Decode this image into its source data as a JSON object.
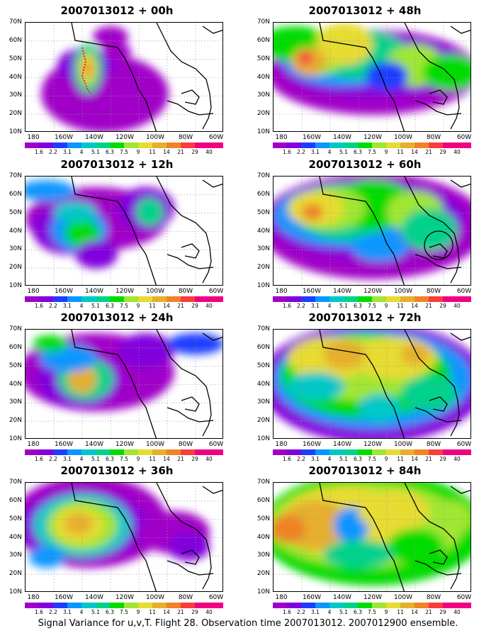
{
  "caption": "Signal Variance for u,v,T. Flight 28. Observation time 2007013012. 2007012900 ensemble.",
  "y_labels": [
    "70N",
    "60N",
    "50N",
    "40N",
    "30N",
    "20N",
    "10N"
  ],
  "x_labels": [
    "180",
    "160W",
    "140W",
    "120W",
    "100W",
    "80W",
    "60W"
  ],
  "colorbar_levels": [
    "1.6",
    "2.2",
    "3.1",
    "4",
    "5.1",
    "6.3",
    "7.5",
    "9",
    "11",
    "14",
    "21",
    "29",
    "40"
  ],
  "colorbar_colors": [
    "#a000c8",
    "#8200dc",
    "#1e3cff",
    "#0a96ff",
    "#00c8c8",
    "#00d28c",
    "#00dc00",
    "#a0e632",
    "#e6dc32",
    "#e6af2d",
    "#f08228",
    "#fa3c3c",
    "#f00082"
  ],
  "map_style": {
    "land_outline": "#000000",
    "gridlines": "dotted gray",
    "low_values": "white"
  },
  "panels": [
    {
      "title": "2007013012 + 00h",
      "annotation": "red dotted flight track"
    },
    {
      "title": "2007013012 + 48h"
    },
    {
      "title": "2007013012 + 12h"
    },
    {
      "title": "2007013012 + 60h",
      "annotation": "black circle over eastern US"
    },
    {
      "title": "2007013012 + 24h"
    },
    {
      "title": "2007013012 + 72h"
    },
    {
      "title": "2007013012 + 36h"
    },
    {
      "title": "2007013012 + 84h"
    }
  ]
}
